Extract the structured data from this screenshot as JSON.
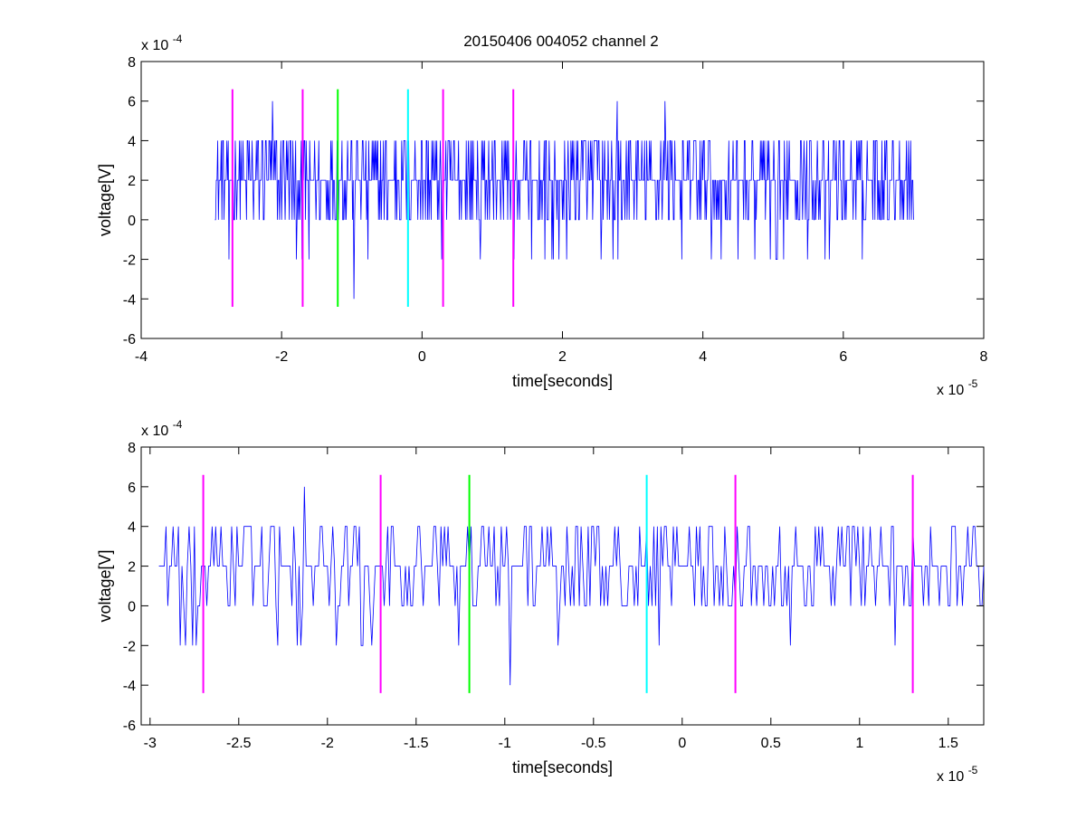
{
  "figure": {
    "title": "20150406 004052 channel 2",
    "background": "#ffffff"
  },
  "colors": {
    "signal": "#0000ff",
    "marker_magenta": "#ff00ff",
    "marker_green": "#00ff00",
    "marker_cyan": "#00ffff",
    "axes": "#000000"
  },
  "chart_data": [
    {
      "type": "line",
      "title": "20150406 004052 channel 2",
      "xlabel": "time[seconds]",
      "ylabel": "voltage[V]",
      "x_exponent_label": "x 10",
      "x_exponent": "-5",
      "y_exponent_label": "x 10",
      "y_exponent": "-4",
      "xlim": [
        -4,
        8
      ],
      "ylim": [
        -6,
        8
      ],
      "x_ticks": [
        -4,
        -2,
        0,
        2,
        4,
        6,
        8
      ],
      "x_tick_labels": [
        "-4",
        "-2",
        "0",
        "2",
        "4",
        "6",
        "8"
      ],
      "y_ticks": [
        -6,
        -4,
        -2,
        0,
        2,
        4,
        6,
        8
      ],
      "y_tick_labels": [
        "-6",
        "-4",
        "-2",
        "0",
        "2",
        "4",
        "6",
        "8"
      ],
      "grid": false,
      "series": [
        {
          "color": "#0000ff",
          "x_range": [
            -2.95,
            7.0
          ],
          "sample_step": 0.01,
          "levels": [
            -4,
            -2,
            0,
            2,
            4,
            6
          ],
          "description_values": {
            "baseline": 2,
            "typical_range": [
              0,
              4
            ],
            "min": -4,
            "max": 6,
            "notable_peaks": [
              {
                "x": -2.13,
                "y": 6
              },
              {
                "x": 2.78,
                "y": 6
              },
              {
                "x": 3.46,
                "y": 6
              },
              {
                "x": -0.97,
                "y": -4
              }
            ]
          }
        }
      ],
      "markers": [
        {
          "x": -2.7,
          "y_range": [
            -4.4,
            6.6
          ],
          "color": "#ff00ff"
        },
        {
          "x": -1.7,
          "y_range": [
            -4.4,
            6.6
          ],
          "color": "#ff00ff"
        },
        {
          "x": -1.2,
          "y_range": [
            -4.4,
            6.6
          ],
          "color": "#00ff00"
        },
        {
          "x": -0.2,
          "y_range": [
            -4.4,
            6.6
          ],
          "color": "#00ffff"
        },
        {
          "x": 0.3,
          "y_range": [
            -4.4,
            6.6
          ],
          "color": "#ff00ff"
        },
        {
          "x": 1.3,
          "y_range": [
            -4.4,
            6.6
          ],
          "color": "#ff00ff"
        }
      ]
    },
    {
      "type": "line",
      "title": "",
      "xlabel": "time[seconds]",
      "ylabel": "voltage[V]",
      "x_exponent_label": "x 10",
      "x_exponent": "-5",
      "y_exponent_label": "x 10",
      "y_exponent": "-4",
      "xlim": [
        -3.05,
        1.7
      ],
      "ylim": [
        -6,
        8
      ],
      "x_ticks": [
        -3,
        -2.5,
        -2,
        -1.5,
        -1,
        -0.5,
        0,
        0.5,
        1,
        1.5
      ],
      "x_tick_labels": [
        "-3",
        "-2.5",
        "-2",
        "-1.5",
        "-1",
        "-0.5",
        "0",
        "0.5",
        "1",
        "1.5"
      ],
      "y_ticks": [
        -6,
        -4,
        -2,
        0,
        2,
        4,
        6,
        8
      ],
      "y_tick_labels": [
        "-6",
        "-4",
        "-2",
        "0",
        "2",
        "4",
        "6",
        "8"
      ],
      "grid": false,
      "series": [
        {
          "color": "#0000ff",
          "x_range": [
            -2.95,
            1.7
          ],
          "sample_step": 0.01,
          "levels": [
            -4,
            -2,
            0,
            2,
            4,
            6
          ],
          "description_values": {
            "baseline": 2,
            "typical_range": [
              0,
              4
            ],
            "min": -4,
            "max": 6,
            "notable_peaks": [
              {
                "x": -2.13,
                "y": 6
              },
              {
                "x": -0.97,
                "y": -4
              },
              {
                "x": -2.8,
                "y": -2
              },
              {
                "x": -1.95,
                "y": -2
              }
            ]
          }
        }
      ],
      "markers": [
        {
          "x": -2.7,
          "y_range": [
            -4.4,
            6.6
          ],
          "color": "#ff00ff"
        },
        {
          "x": -1.7,
          "y_range": [
            -4.4,
            6.6
          ],
          "color": "#ff00ff"
        },
        {
          "x": -1.2,
          "y_range": [
            -4.4,
            6.6
          ],
          "color": "#00ff00"
        },
        {
          "x": -0.2,
          "y_range": [
            -4.4,
            6.6
          ],
          "color": "#00ffff"
        },
        {
          "x": 0.3,
          "y_range": [
            -4.4,
            6.6
          ],
          "color": "#ff00ff"
        },
        {
          "x": 1.3,
          "y_range": [
            -4.4,
            6.6
          ],
          "color": "#ff00ff"
        }
      ]
    }
  ]
}
